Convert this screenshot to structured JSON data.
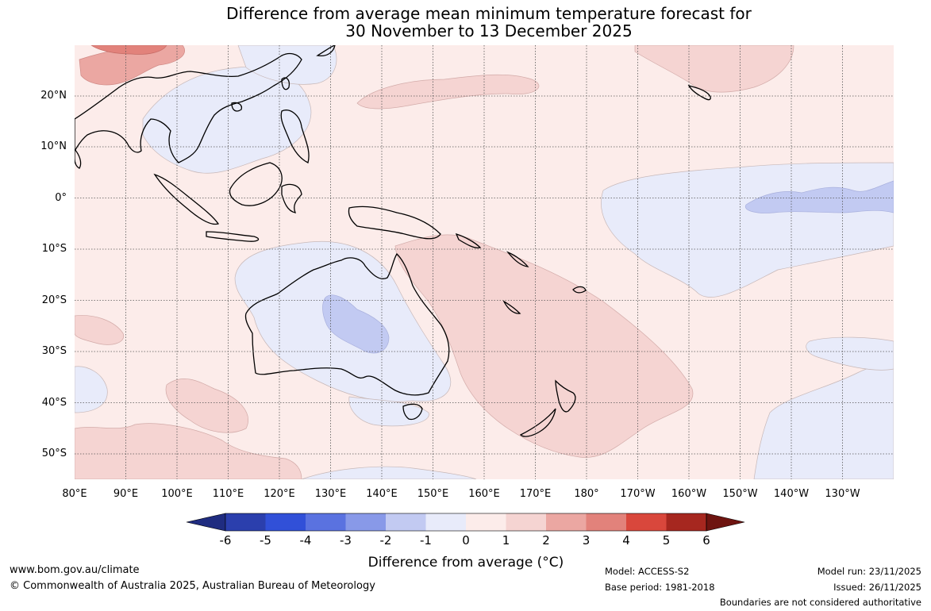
{
  "title_line1": "Difference from average mean minimum temperature forecast for",
  "title_line2": "30 November to 13 December 2025",
  "lat_labels": [
    "20°N",
    "10°N",
    "0°",
    "10°S",
    "20°S",
    "30°S",
    "40°S",
    "50°S"
  ],
  "lon_labels": [
    "80°E",
    "90°E",
    "100°E",
    "110°E",
    "120°E",
    "130°E",
    "140°E",
    "150°E",
    "160°E",
    "170°E",
    "180°",
    "170°W",
    "160°W",
    "150°W",
    "140°W",
    "130°W"
  ],
  "colorbar": {
    "ticks": [
      "-6",
      "-5",
      "-4",
      "-3",
      "-2",
      "-1",
      "0",
      "1",
      "2",
      "3",
      "4",
      "5",
      "6"
    ],
    "title": "Difference from average (°C)",
    "colors": [
      "#1f2c80",
      "#2b3fad",
      "#3150d8",
      "#5a72e0",
      "#8899e8",
      "#c2caf2",
      "#e8ebfa",
      "#fcecea",
      "#f5d4d2",
      "#eba7a2",
      "#e2827b",
      "#d9473c",
      "#a6271f",
      "#6e1410"
    ]
  },
  "map": {
    "lat_range": [
      -55,
      30
    ],
    "lon_range": [
      80,
      240
    ],
    "background_anomaly": "0 to 1",
    "regions": [
      {
        "name": "Central Pacific warm patch",
        "anomaly": "1 to 2"
      },
      {
        "name": "Eastern Australia to Tasman Sea",
        "anomaly": "1 to 2"
      },
      {
        "name": "Southern China / Mongolia",
        "anomaly": "2 to 4"
      },
      {
        "name": "Western Australia interior",
        "anomaly": "-2 to -1"
      },
      {
        "name": "Equatorial eastern Pacific",
        "anomaly": "-2 to -1"
      },
      {
        "name": "Southeast Pacific",
        "anomaly": "-1 to 0"
      }
    ]
  },
  "footer": {
    "url": "www.bom.gov.au/climate",
    "copyright": "© Commonwealth of Australia 2025, Australian Bureau of Meteorology",
    "model": "Model: ACCESS-S2",
    "base_period": "Base period: 1981-2018",
    "model_run": "Model run: 23/11/2025",
    "issued": "Issued: 26/11/2025",
    "disclaimer": "Boundaries are not considered authoritative"
  }
}
